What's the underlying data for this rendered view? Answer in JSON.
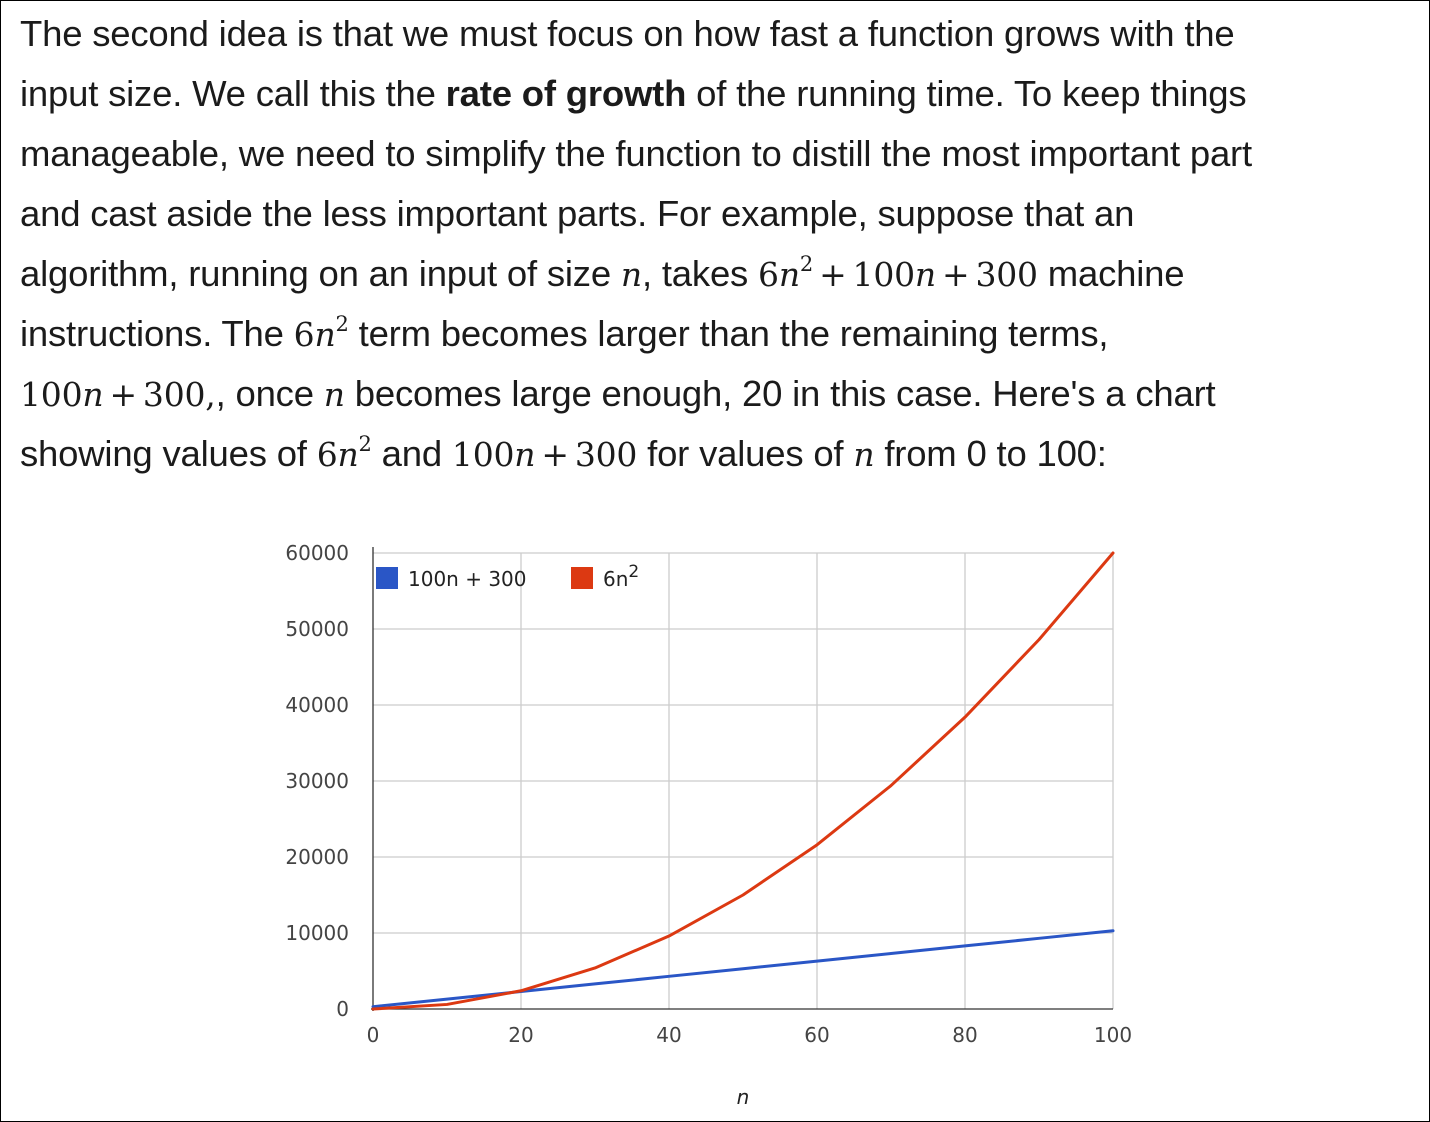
{
  "passage": {
    "l1": "The second idea is that we must focus on how fast a function grows with the",
    "l2a": "input size. We call this the ",
    "l2b": "rate of growth",
    "l2c": " of the running time. To keep things",
    "l3": "manageable, we need to simplify the function to distill the most important part",
    "l4": "and cast aside the less important parts. For example, suppose that an",
    "l5a": "algorithm, running on an input of size ",
    "l5b": ", takes ",
    "l5c": " machine",
    "l6a": "instructions. The ",
    "l6b": " term becomes larger than the remaining terms,",
    "l7a": ", once ",
    "l7b": " becomes large enough, 20 in this case. Here's a chart",
    "l8a": "showing values of ",
    "l8b": " and ",
    "l8c": " for values of ",
    "l8d": " from 0 to 100:"
  },
  "math": {
    "n": "n",
    "six": "6",
    "two": "2",
    "hundred": "100",
    "three_hundred": "300",
    "plus": "+",
    "comma": ","
  },
  "chart_data": {
    "type": "line",
    "xlabel": "n",
    "ylabel": "",
    "xlim": [
      0,
      100
    ],
    "ylim": [
      0,
      60000
    ],
    "x_ticks": [
      0,
      20,
      40,
      60,
      80,
      100
    ],
    "y_ticks": [
      0,
      10000,
      20000,
      30000,
      40000,
      50000,
      60000
    ],
    "grid": true,
    "legend_position": "top-left",
    "series": [
      {
        "name": "100n + 300",
        "color": "#2a56c6",
        "x": [
          0,
          10,
          20,
          30,
          40,
          50,
          60,
          70,
          80,
          90,
          100
        ],
        "values": [
          300,
          1300,
          2300,
          3300,
          4300,
          5300,
          6300,
          7300,
          8300,
          9300,
          10300
        ]
      },
      {
        "name": "6n",
        "name_sup": "2",
        "color": "#dc3912",
        "x": [
          0,
          10,
          20,
          30,
          40,
          50,
          60,
          70,
          80,
          90,
          100
        ],
        "values": [
          0,
          600,
          2400,
          5400,
          9600,
          15000,
          21600,
          29400,
          38400,
          48600,
          60000
        ]
      }
    ]
  }
}
